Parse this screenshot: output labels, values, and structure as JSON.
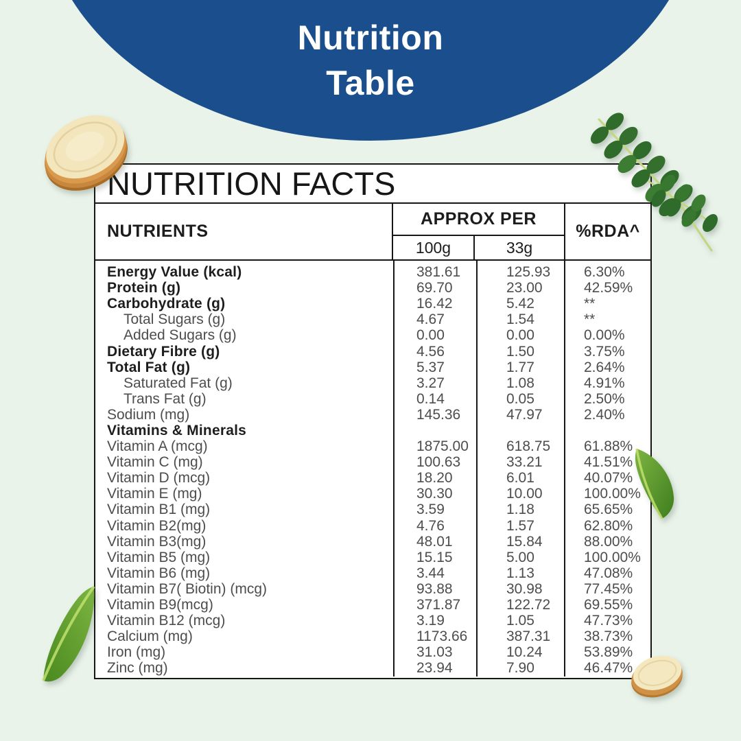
{
  "page": {
    "background_color": "#e9f3ea",
    "banner_color": "#1a4e8c"
  },
  "banner": {
    "line1": "Nutrition",
    "line2": "Table"
  },
  "table": {
    "title": "NUTRITION FACTS",
    "header": {
      "nutrients": "NUTRIENTS",
      "group": "APPROX PER",
      "col_100g": "100g",
      "col_33g": "33g",
      "rda": "%RDA^"
    },
    "rows": [
      {
        "label": "Energy Value (kcal)",
        "per100": "381.61",
        "per33": "125.93",
        "rda": "6.30%",
        "emphasis": true,
        "indent": false
      },
      {
        "label": "Protein (g)",
        "per100": "69.70",
        "per33": "23.00",
        "rda": "42.59%",
        "emphasis": true,
        "indent": false
      },
      {
        "label": "Carbohydrate (g)",
        "per100": "16.42",
        "per33": "5.42",
        "rda": "**",
        "emphasis": true,
        "indent": false
      },
      {
        "label": "Total Sugars (g)",
        "per100": "4.67",
        "per33": "1.54",
        "rda": "**",
        "emphasis": false,
        "indent": true
      },
      {
        "label": "Added Sugars (g)",
        "per100": "0.00",
        "per33": "0.00",
        "rda": "0.00%",
        "emphasis": false,
        "indent": true
      },
      {
        "label": "Dietary Fibre (g)",
        "per100": "4.56",
        "per33": "1.50",
        "rda": "3.75%",
        "emphasis": true,
        "indent": false
      },
      {
        "label": "Total Fat (g)",
        "per100": "5.37",
        "per33": "1.77",
        "rda": "2.64%",
        "emphasis": true,
        "indent": false
      },
      {
        "label": "Saturated Fat (g)",
        "per100": "3.27",
        "per33": "1.08",
        "rda": "4.91%",
        "emphasis": false,
        "indent": true
      },
      {
        "label": "Trans Fat (g)",
        "per100": "0.14",
        "per33": "0.05",
        "rda": "2.50%",
        "emphasis": false,
        "indent": true
      },
      {
        "label": "Sodium (mg)",
        "per100": "145.36",
        "per33": "47.97",
        "rda": "2.40%",
        "emphasis": false,
        "indent": false
      },
      {
        "label": "Vitamins & Minerals",
        "per100": "",
        "per33": "",
        "rda": "",
        "emphasis": true,
        "indent": false
      },
      {
        "label": "Vitamin A (mcg)",
        "per100": "1875.00",
        "per33": "618.75",
        "rda": "61.88%",
        "emphasis": false,
        "indent": false
      },
      {
        "label": "Vitamin C (mg)",
        "per100": "100.63",
        "per33": "33.21",
        "rda": "41.51%",
        "emphasis": false,
        "indent": false
      },
      {
        "label": "Vitamin D (mcg)",
        "per100": "18.20",
        "per33": "6.01",
        "rda": "40.07%",
        "emphasis": false,
        "indent": false
      },
      {
        "label": "Vitamin E (mg)",
        "per100": "30.30",
        "per33": "10.00",
        "rda": "100.00%",
        "emphasis": false,
        "indent": false
      },
      {
        "label": "Vitamin B1 (mg)",
        "per100": "3.59",
        "per33": "1.18",
        "rda": "65.65%",
        "emphasis": false,
        "indent": false
      },
      {
        "label": "Vitamin B2(mg)",
        "per100": "4.76",
        "per33": "1.57",
        "rda": "62.80%",
        "emphasis": false,
        "indent": false
      },
      {
        "label": "Vitamin B3(mg)",
        "per100": "48.01",
        "per33": "15.84",
        "rda": "88.00%",
        "emphasis": false,
        "indent": false
      },
      {
        "label": "Vitamin B5 (mg)",
        "per100": "15.15",
        "per33": "5.00",
        "rda": "100.00%",
        "emphasis": false,
        "indent": false
      },
      {
        "label": "Vitamin B6 (mg)",
        "per100": "3.44",
        "per33": "1.13",
        "rda": "47.08%",
        "emphasis": false,
        "indent": false
      },
      {
        "label": "Vitamin B7( Biotin) (mcg)",
        "per100": "93.88",
        "per33": "30.98",
        "rda": "77.45%",
        "emphasis": false,
        "indent": false
      },
      {
        "label": "Vitamin B9(mcg)",
        "per100": "371.87",
        "per33": "122.72",
        "rda": "69.55%",
        "emphasis": false,
        "indent": false
      },
      {
        "label": "Vitamin B12 (mcg)",
        "per100": "3.19",
        "per33": "1.05",
        "rda": "47.73%",
        "emphasis": false,
        "indent": false
      },
      {
        "label": "Calcium (mg)",
        "per100": "1173.66",
        "per33": "387.31",
        "rda": "38.73%",
        "emphasis": false,
        "indent": false
      },
      {
        "label": "Iron (mg)",
        "per100": "31.03",
        "per33": "10.24",
        "rda": "53.89%",
        "emphasis": false,
        "indent": false
      },
      {
        "label": "Zinc (mg)",
        "per100": "23.94",
        "per33": "7.90",
        "rda": "46.47%",
        "emphasis": false,
        "indent": false
      }
    ]
  },
  "decorations": {
    "root_slice_large": "root-slice",
    "root_slice_small": "root-slice",
    "moringa_branch": "moringa-leaf-branch",
    "leaf_right": "green-leaf",
    "leaf_bottom_left": "green-leaf",
    "colors": {
      "leaf_dark_green": "#2f6b2a",
      "leaf_bright_green": "#5ea12f",
      "leaf_highlight": "#c2e06d",
      "root_rim": "#c8873c",
      "root_face": "#f3e6bc"
    }
  }
}
